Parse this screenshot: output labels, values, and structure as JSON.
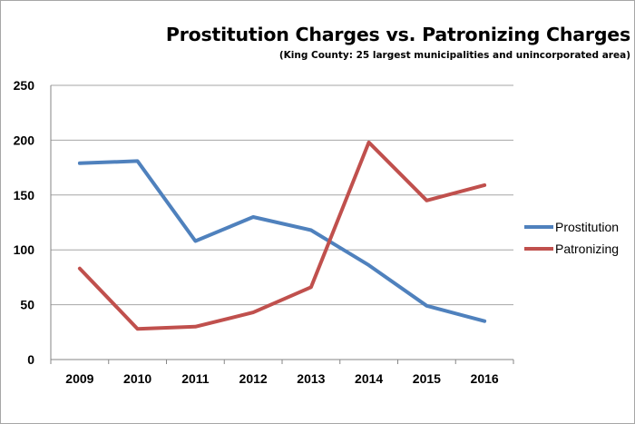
{
  "chart_data": {
    "type": "line",
    "title": "Prostitution Charges vs. Patronizing Charges",
    "subtitle": "(King County: 25 largest municipalities and unincorporated area)",
    "xlabel": "",
    "ylabel": "",
    "categories": [
      "2009",
      "2010",
      "2011",
      "2012",
      "2013",
      "2014",
      "2015",
      "2016"
    ],
    "ylim": [
      0,
      250
    ],
    "yticks": [
      0,
      50,
      100,
      150,
      200,
      250
    ],
    "grid": true,
    "legend_position": "right",
    "series": [
      {
        "name": "Prostitution",
        "color": "#4f81bd",
        "values": [
          179,
          181,
          108,
          130,
          118,
          86,
          49,
          35
        ]
      },
      {
        "name": "Patronizing",
        "color": "#c0504d",
        "values": [
          83,
          28,
          30,
          43,
          66,
          198,
          145,
          159
        ]
      }
    ]
  }
}
